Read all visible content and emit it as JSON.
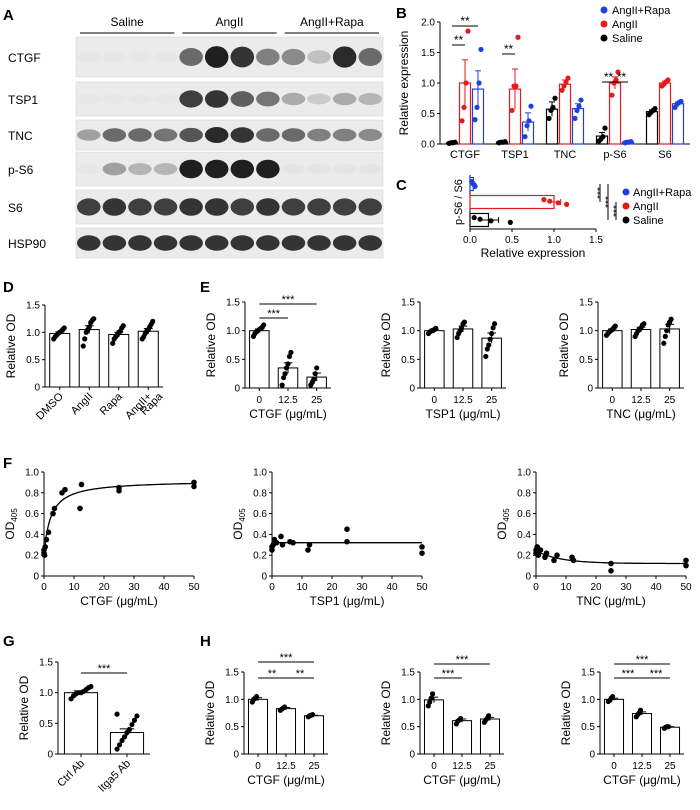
{
  "panels": {
    "A": {
      "letter": "A",
      "groups": [
        "Saline",
        "AngII",
        "AngII+Rapa"
      ],
      "lanes_per_group": 4,
      "rows": [
        {
          "label": "CTGF",
          "band_intensity": [
            0.02,
            0.02,
            0.02,
            0.02,
            0.6,
            0.95,
            0.85,
            0.5,
            0.45,
            0.2,
            0.9,
            0.6
          ]
        },
        {
          "label": "TSP1",
          "band_intensity": [
            0.02,
            0.02,
            0.02,
            0.02,
            0.8,
            0.85,
            0.65,
            0.55,
            0.3,
            0.15,
            0.3,
            0.25
          ]
        },
        {
          "label": "TNC",
          "band_intensity": [
            0.35,
            0.6,
            0.6,
            0.55,
            0.7,
            0.9,
            0.85,
            0.6,
            0.6,
            0.5,
            0.5,
            0.45
          ]
        },
        {
          "label": "p-S6",
          "band_intensity": [
            0.02,
            0.35,
            0.25,
            0.25,
            0.95,
            0.95,
            0.95,
            0.95,
            0.03,
            0.03,
            0.03,
            0.03
          ]
        },
        {
          "label": "S6",
          "band_intensity": [
            0.8,
            0.85,
            0.8,
            0.8,
            0.85,
            0.85,
            0.8,
            0.85,
            0.8,
            0.8,
            0.8,
            0.8
          ]
        },
        {
          "label": "HSP90",
          "band_intensity": [
            0.85,
            0.85,
            0.85,
            0.85,
            0.85,
            0.85,
            0.85,
            0.85,
            0.85,
            0.85,
            0.85,
            0.85
          ]
        }
      ]
    },
    "B": "B",
    "C": "C",
    "D": "D",
    "E": "E",
    "F": "F",
    "G": "G",
    "H": "H"
  },
  "colors": {
    "saline": "#000000",
    "angii": "#e41a1c",
    "angii_rapa": "#1f3fe0",
    "bar_fill": "#ffffff",
    "axis": "#000000"
  },
  "chart_data": [
    {
      "id": "B",
      "type": "bar",
      "ylabel": "Relative expression",
      "ylim": [
        0,
        2
      ],
      "yticks": [
        "0.0",
        "0.5",
        "1.0",
        "1.5",
        "2.0"
      ],
      "categories": [
        "CTGF",
        "TSP1",
        "TNC",
        "p-S6",
        "S6"
      ],
      "legend": {
        "placement": "top-right",
        "entries": [
          "AngII+Rapa",
          "AngII",
          "Saline"
        ]
      },
      "series": [
        {
          "name": "Saline",
          "values": [
            0.02,
            0.03,
            0.57,
            0.13,
            0.53
          ],
          "err": [
            0.01,
            0.01,
            0.12,
            0.06,
            0.03
          ],
          "points": [
            [
              0.01,
              0.02,
              0.02,
              0.03
            ],
            [
              0.02,
              0.03,
              0.03,
              0.04
            ],
            [
              0.42,
              0.55,
              0.6,
              0.75
            ],
            [
              0.05,
              0.08,
              0.12,
              0.26
            ],
            [
              0.48,
              0.52,
              0.55,
              0.58
            ]
          ]
        },
        {
          "name": "AngII",
          "values": [
            1.0,
            0.9,
            0.98,
            1.0,
            1.0
          ],
          "err": [
            0.38,
            0.33,
            0.07,
            0.1,
            0.03
          ],
          "points": [
            [
              0.38,
              0.6,
              1.0,
              1.85
            ],
            [
              0.55,
              0.95,
              0.95,
              1.75
            ],
            [
              0.88,
              0.95,
              1.02,
              1.08
            ],
            [
              0.8,
              1.0,
              1.05,
              1.18
            ],
            [
              0.95,
              0.98,
              1.02,
              1.05
            ]
          ]
        },
        {
          "name": "AngII+Rapa",
          "values": [
            0.9,
            0.36,
            0.58,
            0.03,
            0.66
          ],
          "err": [
            0.3,
            0.15,
            0.08,
            0.01,
            0.03
          ],
          "points": [
            [
              0.4,
              0.6,
              1.0,
              1.55
            ],
            [
              0.12,
              0.3,
              0.38,
              0.62
            ],
            [
              0.42,
              0.55,
              0.62,
              0.72
            ],
            [
              0.02,
              0.03,
              0.03,
              0.04
            ],
            [
              0.6,
              0.65,
              0.68,
              0.7
            ]
          ]
        }
      ],
      "annotations": [
        "**",
        "**",
        "**",
        "**",
        "**"
      ]
    },
    {
      "id": "C",
      "type": "bar",
      "orientation": "horizontal",
      "category": "p-S6 / S6",
      "xlabel": "Relative expression",
      "xlim": [
        0,
        1.5
      ],
      "xticks": [
        "0.0",
        "0.5",
        "1.0",
        "1.5"
      ],
      "legend": {
        "placement": "right",
        "entries": [
          "AngII+Rapa",
          "AngII",
          "Saline"
        ]
      },
      "series": [
        {
          "name": "AngII+Rapa",
          "value": 0.04,
          "err": 0.01,
          "points": [
            0.02,
            0.03,
            0.05,
            0.06
          ]
        },
        {
          "name": "AngII",
          "value": 1.0,
          "err": 0.08,
          "points": [
            0.88,
            0.95,
            1.05,
            1.15
          ]
        },
        {
          "name": "Saline",
          "value": 0.22,
          "err": 0.12,
          "points": [
            0.05,
            0.12,
            0.25,
            0.48
          ]
        }
      ],
      "annotations": [
        "***",
        "***",
        "***"
      ]
    },
    {
      "id": "D",
      "type": "bar",
      "ylabel": "Relative OD",
      "ylim": [
        0,
        1.5
      ],
      "yticks": [
        "0",
        "0.5",
        "1.0",
        "1.5"
      ],
      "categories": [
        "DMSO",
        "AngII",
        "Rapa",
        "AngII+\nRapa"
      ],
      "values": [
        0.98,
        1.05,
        0.96,
        1.02
      ],
      "err": [
        0.03,
        0.07,
        0.04,
        0.05
      ],
      "points": [
        [
          0.88,
          0.92,
          0.95,
          0.98,
          1.0,
          1.02,
          1.05,
          1.08
        ],
        [
          0.75,
          0.88,
          1.0,
          1.05,
          1.1,
          1.18,
          1.22,
          1.25
        ],
        [
          0.8,
          0.88,
          0.92,
          0.95,
          1.0,
          1.02,
          1.08,
          1.12
        ],
        [
          0.88,
          0.92,
          0.98,
          1.02,
          1.05,
          1.1,
          1.15,
          1.2
        ]
      ]
    },
    {
      "id": "E1",
      "type": "bar",
      "ylabel": "Relative OD",
      "xlabel": "CTGF (μg/mL)",
      "ylim": [
        0,
        1.5
      ],
      "yticks": [
        "0",
        "0.5",
        "1.0",
        "1.5"
      ],
      "categories": [
        "0",
        "12.5",
        "25"
      ],
      "values": [
        1.0,
        0.35,
        0.19
      ],
      "err": [
        0.03,
        0.09,
        0.07
      ],
      "points": [
        [
          0.9,
          0.95,
          0.98,
          1.0,
          1.02,
          1.04,
          1.06,
          1.1
        ],
        [
          0.05,
          0.18,
          0.25,
          0.35,
          0.42,
          0.55,
          0.62
        ],
        [
          0.05,
          0.1,
          0.15,
          0.25,
          0.35
        ]
      ],
      "annotations": [
        "***",
        "***"
      ]
    },
    {
      "id": "E2",
      "type": "bar",
      "ylabel": "Relative OD",
      "xlabel": "TSP1 (μg/mL)",
      "ylim": [
        0,
        1.5
      ],
      "yticks": [
        "0",
        "0.5",
        "1.0",
        "1.5"
      ],
      "categories": [
        "0",
        "12.5",
        "25"
      ],
      "values": [
        1.0,
        1.03,
        0.87
      ],
      "err": [
        0.02,
        0.05,
        0.09
      ],
      "points": [
        [
          0.95,
          0.98,
          1.0,
          1.0,
          1.02,
          1.04
        ],
        [
          0.88,
          0.95,
          1.0,
          1.05,
          1.12,
          1.15
        ],
        [
          0.55,
          0.68,
          0.75,
          0.85,
          0.95,
          1.05,
          1.12
        ]
      ]
    },
    {
      "id": "E3",
      "type": "bar",
      "ylabel": "Relative OD",
      "xlabel": "TNC (μg/mL)",
      "ylim": [
        0,
        1.5
      ],
      "yticks": [
        "0",
        "0.5",
        "1.0",
        "1.5"
      ],
      "categories": [
        "0",
        "12.5",
        "25"
      ],
      "values": [
        1.0,
        1.02,
        1.03
      ],
      "err": [
        0.03,
        0.04,
        0.08
      ],
      "points": [
        [
          0.92,
          0.95,
          0.98,
          1.0,
          1.02,
          1.05,
          1.08
        ],
        [
          0.9,
          0.95,
          1.0,
          1.02,
          1.05,
          1.1,
          1.12
        ],
        [
          0.78,
          0.9,
          1.0,
          1.1,
          1.15,
          1.2
        ]
      ]
    },
    {
      "id": "F1",
      "type": "scatter",
      "xlabel": "CTGF (μg/mL)",
      "ylabel": "OD405",
      "ylabel_main": "OD",
      "ylabel_sub": "405",
      "xlim": [
        0,
        50
      ],
      "ylim": [
        0,
        1.0
      ],
      "xticks": [
        "0",
        "10",
        "20",
        "30",
        "40",
        "50"
      ],
      "yticks": [
        "0",
        "0.2",
        "0.4",
        "0.6",
        "0.8",
        "1.0"
      ],
      "x": [
        0,
        0,
        0.2,
        0.4,
        0.8,
        1.5,
        3,
        3.5,
        6,
        7,
        12,
        12.5,
        25,
        25,
        50,
        50
      ],
      "y": [
        0.22,
        0.25,
        0.2,
        0.28,
        0.35,
        0.42,
        0.6,
        0.65,
        0.8,
        0.83,
        0.65,
        0.88,
        0.85,
        0.82,
        0.86,
        0.9
      ],
      "fit": {
        "type": "hyperbola",
        "bottom": 0.2,
        "top": 0.92,
        "kd": 2.2
      }
    },
    {
      "id": "F2",
      "type": "scatter",
      "xlabel": "TSP1 (μg/mL)",
      "ylabel": "OD405",
      "ylabel_main": "OD",
      "ylabel_sub": "405",
      "xlim": [
        0,
        50
      ],
      "ylim": [
        0,
        1.0
      ],
      "xticks": [
        "0",
        "10",
        "20",
        "30",
        "40",
        "50"
      ],
      "yticks": [
        "0",
        "0.2",
        "0.4",
        "0.6",
        "0.8",
        "1.0"
      ],
      "x": [
        0,
        0,
        0.4,
        0.8,
        1.5,
        3,
        3.5,
        6,
        7,
        12,
        12.5,
        25,
        25,
        50,
        50
      ],
      "y": [
        0.25,
        0.28,
        0.3,
        0.35,
        0.32,
        0.38,
        0.3,
        0.33,
        0.32,
        0.25,
        0.3,
        0.45,
        0.33,
        0.28,
        0.22
      ],
      "fit": {
        "type": "flat",
        "level": 0.32,
        "rise_from": 0.25
      }
    },
    {
      "id": "F3",
      "type": "scatter",
      "xlabel": "TNC (μg/mL)",
      "ylabel": "OD405",
      "ylabel_main": "OD",
      "ylabel_sub": "405",
      "xlim": [
        0,
        50
      ],
      "ylim": [
        0,
        1.0
      ],
      "xticks": [
        "0",
        "10",
        "20",
        "30",
        "40",
        "50"
      ],
      "yticks": [
        "0",
        "0.2",
        "0.4",
        "0.6",
        "0.8",
        "1.0"
      ],
      "x": [
        0,
        0,
        0.4,
        0.8,
        1.5,
        3,
        3.5,
        6,
        7,
        12,
        12.5,
        25,
        25,
        50,
        50
      ],
      "y": [
        0.25,
        0.22,
        0.28,
        0.2,
        0.25,
        0.18,
        0.22,
        0.15,
        0.2,
        0.18,
        0.15,
        0.12,
        0.05,
        0.15,
        0.1
      ],
      "fit": {
        "type": "decay",
        "start": 0.24,
        "end": 0.12,
        "k": 0.12
      }
    },
    {
      "id": "G",
      "type": "bar",
      "ylabel": "Relative OD",
      "ylim": [
        0,
        1.5
      ],
      "yticks": [
        "0",
        "0.5",
        "1.0",
        "1.5"
      ],
      "categories": [
        "Ctrl Ab",
        "Itga5 Ab"
      ],
      "values": [
        1.0,
        0.35
      ],
      "err": [
        0.03,
        0.06
      ],
      "points": [
        [
          0.9,
          0.95,
          0.98,
          1.0,
          1.0,
          1.02,
          1.05,
          1.08,
          1.1
        ],
        [
          0.08,
          0.15,
          0.22,
          0.28,
          0.35,
          0.4,
          0.48,
          0.55,
          0.62,
          0.65
        ]
      ],
      "annotations": [
        "***"
      ]
    },
    {
      "id": "H1",
      "type": "bar",
      "ylabel": "Relative OD",
      "xlabel": "CTGF (μg/mL)",
      "ylim": [
        0,
        1.5
      ],
      "yticks": [
        "0",
        "0.5",
        "1.0",
        "1.5"
      ],
      "categories": [
        "0",
        "12.5",
        "25"
      ],
      "values": [
        1.0,
        0.83,
        0.7
      ],
      "err": [
        0.03,
        0.02,
        0.01
      ],
      "points": [
        [
          0.95,
          1.0,
          1.02,
          1.05
        ],
        [
          0.8,
          0.82,
          0.84,
          0.86
        ],
        [
          0.68,
          0.7,
          0.71,
          0.72
        ]
      ],
      "annotations": [
        "***",
        "**",
        "**"
      ]
    },
    {
      "id": "H2",
      "type": "bar",
      "ylabel": "Relative OD",
      "xlabel": "CTGF (μg/mL)",
      "ylim": [
        0,
        1.5
      ],
      "yticks": [
        "0",
        "0.5",
        "1.0",
        "1.5"
      ],
      "categories": [
        "0",
        "12.5",
        "25"
      ],
      "values": [
        0.99,
        0.61,
        0.64
      ],
      "err": [
        0.05,
        0.03,
        0.03
      ],
      "points": [
        [
          0.88,
          0.95,
          1.02,
          1.1
        ],
        [
          0.55,
          0.6,
          0.62,
          0.65
        ],
        [
          0.58,
          0.62,
          0.65,
          0.7
        ]
      ],
      "annotations": [
        "***",
        "***"
      ]
    },
    {
      "id": "H3",
      "type": "bar",
      "ylabel": "Relative OD",
      "xlabel": "CTGF (μg/mL)",
      "ylim": [
        0,
        1.5
      ],
      "yticks": [
        "0",
        "0.5",
        "1.0",
        "1.5"
      ],
      "categories": [
        "0",
        "12.5",
        "25"
      ],
      "values": [
        1.0,
        0.74,
        0.49
      ],
      "err": [
        0.02,
        0.03,
        0.01
      ],
      "points": [
        [
          0.96,
          0.98,
          1.02,
          1.05
        ],
        [
          0.68,
          0.72,
          0.75,
          0.8
        ],
        [
          0.47,
          0.49,
          0.5,
          0.5
        ]
      ],
      "annotations": [
        "***",
        "***",
        "***"
      ]
    }
  ]
}
